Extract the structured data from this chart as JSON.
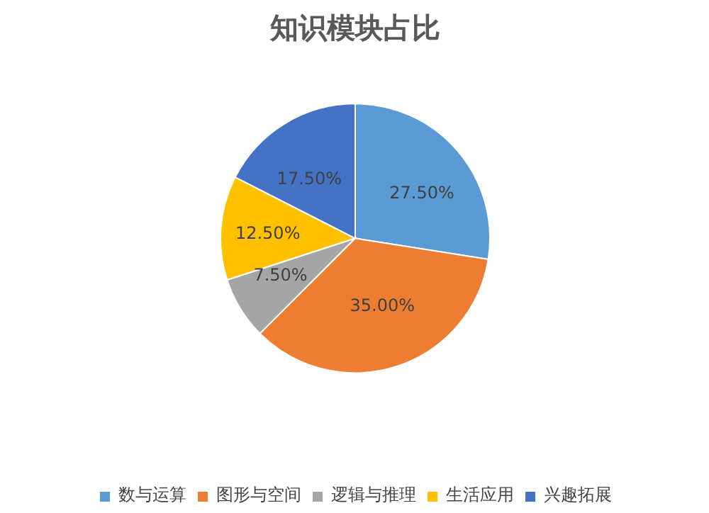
{
  "chart_data": {
    "type": "pie",
    "title": "知识模块占比",
    "categories": [
      "数与运算",
      "图形与空间",
      "逻辑与推理",
      "生活应用",
      "兴趣拓展"
    ],
    "values": [
      27.5,
      35,
      7.5,
      12.5,
      17.5
    ],
    "colors": [
      "#5b9bd5",
      "#ed7d31",
      "#a5a5a5",
      "#ffc000",
      "#4472c4"
    ],
    "value_labels": [
      "27.50%",
      "35.00%",
      "7.50%",
      "12.50%",
      "17.50%"
    ],
    "legend": "bottom"
  }
}
